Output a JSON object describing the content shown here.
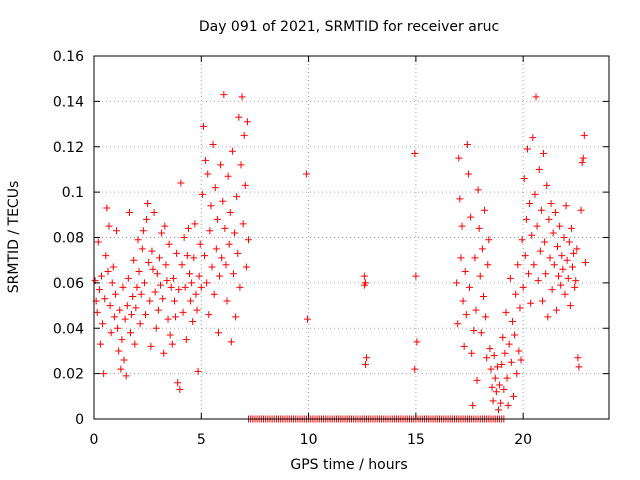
{
  "chart_data": {
    "type": "scatter",
    "title": "Day 091 of 2021, SRMTID for receiver aruc",
    "xlabel": "GPS time / hours",
    "ylabel": "SRMTID / TECUs",
    "xlim": [
      0,
      24
    ],
    "ylim": [
      0,
      0.16
    ],
    "x_ticks": [
      0,
      5,
      10,
      15,
      20
    ],
    "x_tick_labels": [
      "0",
      "5",
      "10",
      "15",
      "20"
    ],
    "y_ticks": [
      0,
      0.02,
      0.04,
      0.06,
      0.08,
      0.1,
      0.12,
      0.14,
      0.16
    ],
    "y_tick_labels": [
      "0",
      "0.02",
      "0.04",
      "0.06",
      "0.08",
      "0.1",
      "0.12",
      "0.14",
      "0.16"
    ],
    "grid": true,
    "marker": "plus",
    "color": "#ff0000",
    "series": [
      {
        "name": "SRMTID",
        "points": [
          [
            0.05,
            0.061
          ],
          [
            0.1,
            0.052
          ],
          [
            0.15,
            0.047
          ],
          [
            0.2,
            0.078
          ],
          [
            0.25,
            0.057
          ],
          [
            0.3,
            0.033
          ],
          [
            0.35,
            0.063
          ],
          [
            0.4,
            0.042
          ],
          [
            0.45,
            0.02
          ],
          [
            0.5,
            0.053
          ],
          [
            0.55,
            0.072
          ],
          [
            0.6,
            0.093
          ],
          [
            0.65,
            0.065
          ],
          [
            0.7,
            0.085
          ],
          [
            0.75,
            0.05
          ],
          [
            0.8,
            0.038
          ],
          [
            0.85,
            0.06
          ],
          [
            0.9,
            0.067
          ],
          [
            0.95,
            0.045
          ],
          [
            1.0,
            0.055
          ],
          [
            1.05,
            0.083
          ],
          [
            1.1,
            0.04
          ],
          [
            1.15,
            0.03
          ],
          [
            1.2,
            0.048
          ],
          [
            1.25,
            0.022
          ],
          [
            1.3,
            0.035
          ],
          [
            1.35,
            0.058
          ],
          [
            1.4,
            0.026
          ],
          [
            1.45,
            0.044
          ],
          [
            1.5,
            0.019
          ],
          [
            1.55,
            0.05
          ],
          [
            1.6,
            0.062
          ],
          [
            1.65,
            0.091
          ],
          [
            1.7,
            0.038
          ],
          [
            1.75,
            0.046
          ],
          [
            1.8,
            0.054
          ],
          [
            1.85,
            0.07
          ],
          [
            1.9,
            0.033
          ],
          [
            1.95,
            0.049
          ],
          [
            2.0,
            0.058
          ],
          [
            2.05,
            0.079
          ],
          [
            2.1,
            0.065
          ],
          [
            2.15,
            0.042
          ],
          [
            2.2,
            0.055
          ],
          [
            2.25,
            0.075
          ],
          [
            2.3,
            0.083
          ],
          [
            2.35,
            0.06
          ],
          [
            2.4,
            0.046
          ],
          [
            2.45,
            0.088
          ],
          [
            2.5,
            0.095
          ],
          [
            2.55,
            0.069
          ],
          [
            2.6,
            0.052
          ],
          [
            2.65,
            0.032
          ],
          [
            2.7,
            0.074
          ],
          [
            2.75,
            0.066
          ],
          [
            2.8,
            0.091
          ],
          [
            2.85,
            0.056
          ],
          [
            2.9,
            0.04
          ],
          [
            2.95,
            0.064
          ],
          [
            3.0,
            0.048
          ],
          [
            3.05,
            0.071
          ],
          [
            3.1,
            0.059
          ],
          [
            3.15,
            0.082
          ],
          [
            3.2,
            0.053
          ],
          [
            3.25,
            0.029
          ],
          [
            3.3,
            0.085
          ],
          [
            3.35,
            0.068
          ],
          [
            3.4,
            0.061
          ],
          [
            3.45,
            0.044
          ],
          [
            3.5,
            0.077
          ],
          [
            3.55,
            0.037
          ],
          [
            3.6,
            0.058
          ],
          [
            3.65,
            0.033
          ],
          [
            3.7,
            0.062
          ],
          [
            3.75,
            0.052
          ],
          [
            3.8,
            0.045
          ],
          [
            3.85,
            0.073
          ],
          [
            3.9,
            0.016
          ],
          [
            3.95,
            0.057
          ],
          [
            4.0,
            0.013
          ],
          [
            4.05,
            0.104
          ],
          [
            4.1,
            0.068
          ],
          [
            4.15,
            0.047
          ],
          [
            4.2,
            0.08
          ],
          [
            4.25,
            0.058
          ],
          [
            4.3,
            0.035
          ],
          [
            4.35,
            0.072
          ],
          [
            4.4,
            0.084
          ],
          [
            4.45,
            0.064
          ],
          [
            4.5,
            0.052
          ],
          [
            4.55,
            0.06
          ],
          [
            4.6,
            0.043
          ],
          [
            4.65,
            0.071
          ],
          [
            4.7,
            0.086
          ],
          [
            4.75,
            0.055
          ],
          [
            4.8,
            0.048
          ],
          [
            4.85,
            0.021
          ],
          [
            4.9,
            0.063
          ],
          [
            4.95,
            0.077
          ],
          [
            5.0,
            0.058
          ],
          [
            5.05,
            0.099
          ],
          [
            5.1,
            0.129
          ],
          [
            5.15,
            0.072
          ],
          [
            5.2,
            0.114
          ],
          [
            5.25,
            0.06
          ],
          [
            5.3,
            0.108
          ],
          [
            5.35,
            0.046
          ],
          [
            5.4,
            0.083
          ],
          [
            5.45,
            0.094
          ],
          [
            5.5,
            0.067
          ],
          [
            5.55,
            0.121
          ],
          [
            5.6,
            0.055
          ],
          [
            5.65,
            0.102
          ],
          [
            5.7,
            0.075
          ],
          [
            5.75,
            0.088
          ],
          [
            5.8,
            0.038
          ],
          [
            5.85,
            0.063
          ],
          [
            5.9,
            0.112
          ],
          [
            5.95,
            0.071
          ],
          [
            6.0,
            0.096
          ],
          [
            6.05,
            0.143
          ],
          [
            6.1,
            0.084
          ],
          [
            6.15,
            0.068
          ],
          [
            6.2,
            0.052
          ],
          [
            6.25,
            0.107
          ],
          [
            6.3,
            0.077
          ],
          [
            6.35,
            0.091
          ],
          [
            6.4,
            0.034
          ],
          [
            6.45,
            0.118
          ],
          [
            6.5,
            0.064
          ],
          [
            6.55,
            0.082
          ],
          [
            6.6,
            0.045
          ],
          [
            6.65,
            0.098
          ],
          [
            6.7,
            0.073
          ],
          [
            6.75,
            0.133
          ],
          [
            6.8,
            0.058
          ],
          [
            6.85,
            0.112
          ],
          [
            6.9,
            0.142
          ],
          [
            6.95,
            0.086
          ],
          [
            7.0,
            0.125
          ],
          [
            7.05,
            0.103
          ],
          [
            7.1,
            0.067
          ],
          [
            7.15,
            0.131
          ],
          [
            7.2,
            0.079
          ],
          [
            9.9,
            0.108
          ],
          [
            9.95,
            0.044
          ],
          [
            12.6,
            0.063
          ],
          [
            12.65,
            0.06
          ],
          [
            12.6,
            0.059
          ],
          [
            12.7,
            0.027
          ],
          [
            12.65,
            0.024
          ],
          [
            14.95,
            0.117
          ],
          [
            15.0,
            0.063
          ],
          [
            15.05,
            0.034
          ],
          [
            14.95,
            0.022
          ],
          [
            16.9,
            0.06
          ],
          [
            16.95,
            0.042
          ],
          [
            17.0,
            0.115
          ],
          [
            17.05,
            0.097
          ],
          [
            17.1,
            0.071
          ],
          [
            17.15,
            0.085
          ],
          [
            17.2,
            0.052
          ],
          [
            17.25,
            0.032
          ],
          [
            17.3,
            0.065
          ],
          [
            17.35,
            0.046
          ],
          [
            17.4,
            0.121
          ],
          [
            17.45,
            0.108
          ],
          [
            17.5,
            0.058
          ],
          [
            17.55,
            0.089
          ],
          [
            17.6,
            0.029
          ],
          [
            17.65,
            0.006
          ],
          [
            17.7,
            0.039
          ],
          [
            17.75,
            0.071
          ],
          [
            17.8,
            0.048
          ],
          [
            17.85,
            0.017
          ],
          [
            17.9,
            0.101
          ],
          [
            17.95,
            0.084
          ],
          [
            18.0,
            0.063
          ],
          [
            18.05,
            0.038
          ],
          [
            18.1,
            0.075
          ],
          [
            18.15,
            0.054
          ],
          [
            18.2,
            0.092
          ],
          [
            18.25,
            0.045
          ],
          [
            18.3,
            0.027
          ],
          [
            18.35,
            0.068
          ],
          [
            18.4,
            0.079
          ],
          [
            18.45,
            0.031
          ],
          [
            18.5,
            0.022
          ],
          [
            18.55,
            0.014
          ],
          [
            18.6,
            0.008
          ],
          [
            18.65,
            0.028
          ],
          [
            18.7,
            0.018
          ],
          [
            18.75,
            0.012
          ],
          [
            18.8,
            0.023
          ],
          [
            18.85,
            0.004
          ],
          [
            18.9,
            0.015
          ],
          [
            18.95,
            0.007
          ],
          [
            19.0,
            0.024
          ],
          [
            19.05,
            0.036
          ],
          [
            19.1,
            0.013
          ],
          [
            19.15,
            0.029
          ],
          [
            19.2,
            0.047
          ],
          [
            19.25,
            0.018
          ],
          [
            19.3,
            0.006
          ],
          [
            19.35,
            0.033
          ],
          [
            19.4,
            0.062
          ],
          [
            19.45,
            0.025
          ],
          [
            19.5,
            0.043
          ],
          [
            19.55,
            0.01
          ],
          [
            19.6,
            0.037
          ],
          [
            19.65,
            0.055
          ],
          [
            19.7,
            0.02
          ],
          [
            19.75,
            0.068
          ],
          [
            19.8,
            0.03
          ],
          [
            19.85,
            0.049
          ],
          [
            19.9,
            0.026
          ],
          [
            19.95,
            0.079
          ],
          [
            20.0,
            0.058
          ],
          [
            20.05,
            0.106
          ],
          [
            20.1,
            0.072
          ],
          [
            20.15,
            0.088
          ],
          [
            20.2,
            0.119
          ],
          [
            20.25,
            0.064
          ],
          [
            20.3,
            0.095
          ],
          [
            20.35,
            0.051
          ],
          [
            20.4,
            0.081
          ],
          [
            20.45,
            0.124
          ],
          [
            20.5,
            0.068
          ],
          [
            20.55,
            0.099
          ],
          [
            20.6,
            0.142
          ],
          [
            20.65,
            0.085
          ],
          [
            20.7,
            0.061
          ],
          [
            20.75,
            0.11
          ],
          [
            20.8,
            0.074
          ],
          [
            20.85,
            0.092
          ],
          [
            20.9,
            0.052
          ],
          [
            20.95,
            0.117
          ],
          [
            21.0,
            0.078
          ],
          [
            21.05,
            0.064
          ],
          [
            21.1,
            0.103
          ],
          [
            21.15,
            0.045
          ],
          [
            21.2,
            0.088
          ],
          [
            21.25,
            0.071
          ],
          [
            21.3,
            0.095
          ],
          [
            21.35,
            0.057
          ],
          [
            21.4,
            0.082
          ],
          [
            21.45,
            0.068
          ],
          [
            21.5,
            0.091
          ],
          [
            21.55,
            0.048
          ],
          [
            21.6,
            0.076
          ],
          [
            21.65,
            0.063
          ],
          [
            21.7,
            0.085
          ],
          [
            21.75,
            0.059
          ],
          [
            21.8,
            0.072
          ],
          [
            21.85,
            0.066
          ],
          [
            21.9,
            0.08
          ],
          [
            21.95,
            0.055
          ],
          [
            22.0,
            0.094
          ],
          [
            22.05,
            0.07
          ],
          [
            22.1,
            0.062
          ],
          [
            22.15,
            0.078
          ],
          [
            22.2,
            0.05
          ],
          [
            22.25,
            0.084
          ],
          [
            22.3,
            0.067
          ],
          [
            22.35,
            0.073
          ],
          [
            22.4,
            0.058
          ],
          [
            22.45,
            0.061
          ],
          [
            22.5,
            0.075
          ],
          [
            22.55,
            0.027
          ],
          [
            22.6,
            0.023
          ],
          [
            22.7,
            0.092
          ],
          [
            22.75,
            0.113
          ],
          [
            22.8,
            0.115
          ],
          [
            22.85,
            0.125
          ],
          [
            22.9,
            0.069
          ]
        ]
      }
    ],
    "zero_band": {
      "x_start": 7.2,
      "x_end": 19.1,
      "step": 0.1,
      "value": 0
    }
  }
}
